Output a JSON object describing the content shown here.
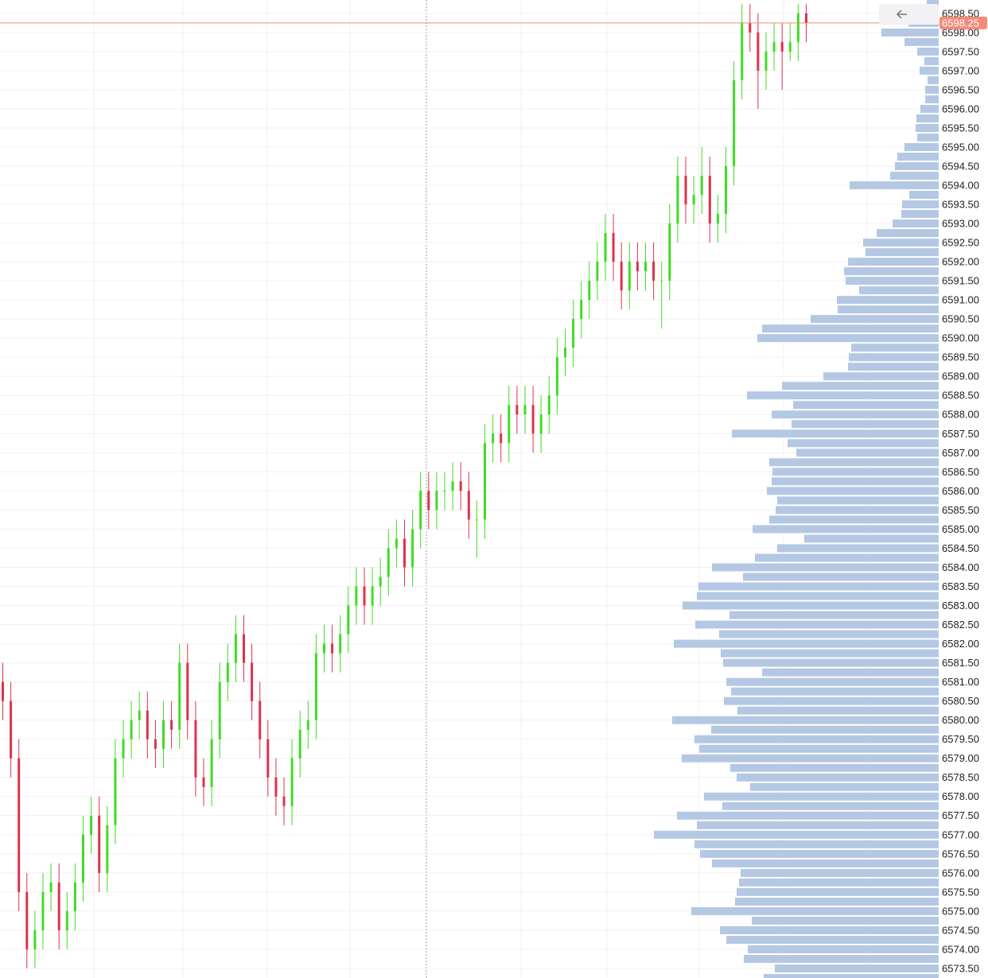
{
  "chart_data": {
    "type": "candlestick",
    "ylim": [
      6573.25,
      6598.85
    ],
    "yticks": [
      {
        "value": 6573.5,
        "label": "6573.50"
      },
      {
        "value": 6574.0,
        "label": "6574.00"
      },
      {
        "value": 6574.5,
        "label": "6574.50"
      },
      {
        "value": 6575.0,
        "label": "6575.00"
      },
      {
        "value": 6575.5,
        "label": "6575.50"
      },
      {
        "value": 6576.0,
        "label": "6576.00"
      },
      {
        "value": 6576.5,
        "label": "6576.50"
      },
      {
        "value": 6577.0,
        "label": "6577.00"
      },
      {
        "value": 6577.5,
        "label": "6577.50"
      },
      {
        "value": 6578.0,
        "label": "6578.00"
      },
      {
        "value": 6578.5,
        "label": "6578.50"
      },
      {
        "value": 6579.0,
        "label": "6579.00"
      },
      {
        "value": 6579.5,
        "label": "6579.50"
      },
      {
        "value": 6580.0,
        "label": "6580.00"
      },
      {
        "value": 6580.5,
        "label": "6580.50"
      },
      {
        "value": 6581.0,
        "label": "6581.00"
      },
      {
        "value": 6581.5,
        "label": "6581.50"
      },
      {
        "value": 6582.0,
        "label": "6582.00"
      },
      {
        "value": 6582.5,
        "label": "6582.50"
      },
      {
        "value": 6583.0,
        "label": "6583.00"
      },
      {
        "value": 6583.5,
        "label": "6583.50"
      },
      {
        "value": 6584.0,
        "label": "6584.00"
      },
      {
        "value": 6584.5,
        "label": "6584.50"
      },
      {
        "value": 6585.0,
        "label": "6585.00"
      },
      {
        "value": 6585.5,
        "label": "6585.50"
      },
      {
        "value": 6586.0,
        "label": "6586.00"
      },
      {
        "value": 6586.5,
        "label": "6586.50"
      },
      {
        "value": 6587.0,
        "label": "6587.00"
      },
      {
        "value": 6587.5,
        "label": "6587.50"
      },
      {
        "value": 6588.0,
        "label": "6588.00"
      },
      {
        "value": 6588.5,
        "label": "6588.50"
      },
      {
        "value": 6589.0,
        "label": "6589.00"
      },
      {
        "value": 6589.5,
        "label": "6589.50"
      },
      {
        "value": 6590.0,
        "label": "6590.00"
      },
      {
        "value": 6590.5,
        "label": "6590.50"
      },
      {
        "value": 6591.0,
        "label": "6591.00"
      },
      {
        "value": 6591.5,
        "label": "6591.50"
      },
      {
        "value": 6592.0,
        "label": "6592.00"
      },
      {
        "value": 6592.5,
        "label": "6592.50"
      },
      {
        "value": 6593.0,
        "label": "6593.00"
      },
      {
        "value": 6593.5,
        "label": "6593.50"
      },
      {
        "value": 6594.0,
        "label": "6594.00"
      },
      {
        "value": 6594.5,
        "label": "6594.50"
      },
      {
        "value": 6595.0,
        "label": "6595.00"
      },
      {
        "value": 6595.5,
        "label": "6595.50"
      },
      {
        "value": 6596.0,
        "label": "6596.00"
      },
      {
        "value": 6596.5,
        "label": "6596.50"
      },
      {
        "value": 6597.0,
        "label": "6597.00"
      },
      {
        "value": 6597.5,
        "label": "6597.50"
      },
      {
        "value": 6598.0,
        "label": "6598.00"
      },
      {
        "value": 6598.5,
        "label": "6598.50"
      }
    ],
    "grid": true,
    "up_color": "#3fdc22",
    "down_color": "#e0304c",
    "open": [
      6581.0,
      6580.5,
      6579.0,
      6575.5,
      6574.0,
      6574.5,
      6575.5,
      6575.75,
      6574.5,
      6575.0,
      6575.75,
      6577.0,
      6577.5,
      6576.0,
      6577.25,
      6579.0,
      6579.5,
      6580.0,
      6580.25,
      6579.5,
      6579.25,
      6580.0,
      6579.75,
      6581.5,
      6580.0,
      6578.5,
      6578.25,
      6579.5,
      6581.0,
      6581.5,
      6582.25,
      6581.5,
      6580.5,
      6579.5,
      6578.5,
      6578.0,
      6577.75,
      6579.0,
      6579.75,
      6580.0,
      6581.75,
      6582.0,
      6581.75,
      6582.25,
      6583.0,
      6583.5,
      6583.0,
      6583.5,
      6583.75,
      6584.5,
      6584.75,
      6584.0,
      6585.0,
      6586.0,
      6585.5,
      6586.0,
      6586.0,
      6586.25,
      6586.0,
      6585.25,
      6585.25,
      6587.25,
      6587.5,
      6587.25,
      6588.25,
      6588.0,
      6588.25,
      6587.5,
      6588.0,
      6588.5,
      6589.5,
      6589.75,
      6590.5,
      6591.0,
      6591.5,
      6592.0,
      6592.75,
      6592.0,
      6591.25,
      6592.0,
      6591.75,
      6592.0,
      6591.5,
      6591.5,
      6593.0,
      6594.25,
      6593.5,
      6593.75,
      6594.25,
      6593.0,
      6593.25,
      6594.5,
      6596.75,
      6598.25,
      6598.0,
      6597.0,
      6597.5,
      6597.75,
      6597.5,
      6597.75,
      6598.5
    ],
    "high": [
      6581.5,
      6581.0,
      6579.5,
      6576.0,
      6575.0,
      6576.0,
      6576.25,
      6576.25,
      6575.5,
      6576.25,
      6577.5,
      6578.0,
      6578.0,
      6577.75,
      6579.5,
      6580.0,
      6580.5,
      6580.75,
      6580.75,
      6580.0,
      6580.5,
      6580.5,
      6582.0,
      6582.0,
      6580.5,
      6579.0,
      6580.0,
      6581.5,
      6582.0,
      6582.75,
      6582.75,
      6582.0,
      6581.0,
      6580.0,
      6579.0,
      6578.5,
      6579.5,
      6580.25,
      6580.5,
      6582.25,
      6582.5,
      6582.5,
      6582.75,
      6583.5,
      6584.0,
      6584.0,
      6584.0,
      6584.25,
      6585.0,
      6585.25,
      6585.25,
      6585.5,
      6586.5,
      6586.5,
      6586.5,
      6586.5,
      6586.75,
      6586.75,
      6586.5,
      6585.75,
      6587.75,
      6588.0,
      6588.0,
      6588.75,
      6588.75,
      6588.75,
      6588.75,
      6588.5,
      6589.0,
      6590.0,
      6590.25,
      6591.0,
      6591.5,
      6592.0,
      6592.5,
      6593.25,
      6593.25,
      6592.5,
      6592.5,
      6592.5,
      6592.5,
      6592.5,
      6592.0,
      6593.5,
      6594.75,
      6594.75,
      6594.25,
      6595.0,
      6594.75,
      6593.75,
      6595.0,
      6597.25,
      6598.75,
      6598.75,
      6598.5,
      6598.0,
      6598.25,
      6598.25,
      6598.25,
      6598.75,
      6598.75
    ],
    "low": [
      6580.0,
      6578.5,
      6575.0,
      6573.5,
      6573.5,
      6574.0,
      6575.0,
      6574.0,
      6574.0,
      6574.5,
      6575.25,
      6576.5,
      6575.5,
      6575.5,
      6576.75,
      6578.5,
      6579.0,
      6579.5,
      6579.0,
      6578.75,
      6578.75,
      6579.25,
      6579.25,
      6579.5,
      6578.0,
      6577.75,
      6577.75,
      6579.0,
      6580.5,
      6581.0,
      6581.0,
      6580.0,
      6579.0,
      6578.0,
      6577.5,
      6577.25,
      6577.25,
      6578.5,
      6579.25,
      6579.5,
      6581.25,
      6581.25,
      6581.25,
      6581.75,
      6582.5,
      6582.5,
      6582.5,
      6583.0,
      6583.25,
      6584.0,
      6583.5,
      6583.5,
      6584.5,
      6585.0,
      6585.0,
      6585.5,
      6585.5,
      6585.5,
      6584.75,
      6584.25,
      6584.75,
      6586.75,
      6586.75,
      6586.75,
      6587.5,
      6587.5,
      6587.0,
      6587.0,
      6587.5,
      6588.0,
      6589.0,
      6589.25,
      6590.0,
      6590.5,
      6591.0,
      6591.5,
      6591.5,
      6590.75,
      6590.75,
      6591.25,
      6591.25,
      6591.0,
      6590.25,
      6591.0,
      6592.5,
      6593.0,
      6593.0,
      6593.25,
      6592.5,
      6592.5,
      6592.75,
      6594.0,
      6596.25,
      6597.5,
      6596.0,
      6596.5,
      6597.0,
      6596.5,
      6597.25,
      6597.25,
      6597.75
    ],
    "close": [
      6580.5,
      6579.0,
      6575.5,
      6574.0,
      6574.5,
      6575.5,
      6575.75,
      6574.5,
      6575.0,
      6575.75,
      6577.0,
      6577.5,
      6576.0,
      6577.25,
      6579.0,
      6579.5,
      6580.0,
      6580.25,
      6579.5,
      6579.25,
      6580.0,
      6579.75,
      6581.5,
      6580.0,
      6578.5,
      6578.25,
      6579.5,
      6581.0,
      6581.5,
      6582.25,
      6581.5,
      6580.5,
      6579.5,
      6578.5,
      6578.0,
      6577.75,
      6579.0,
      6579.75,
      6580.0,
      6581.75,
      6582.0,
      6581.75,
      6582.25,
      6583.0,
      6583.5,
      6583.0,
      6583.5,
      6583.75,
      6584.5,
      6584.75,
      6584.0,
      6585.0,
      6586.0,
      6585.5,
      6586.0,
      6586.0,
      6586.25,
      6586.0,
      6585.25,
      6585.25,
      6587.25,
      6587.5,
      6587.25,
      6588.25,
      6588.0,
      6588.25,
      6587.5,
      6588.0,
      6588.5,
      6589.5,
      6589.75,
      6590.5,
      6591.0,
      6591.5,
      6592.0,
      6592.75,
      6592.0,
      6591.25,
      6592.0,
      6591.75,
      6592.0,
      6591.5,
      6591.5,
      6593.0,
      6594.25,
      6593.5,
      6593.75,
      6594.25,
      6593.0,
      6593.25,
      6594.5,
      6596.75,
      6598.25,
      6598.0,
      6597.0,
      6597.5,
      6597.75,
      6597.5,
      6597.75,
      6598.5,
      6598.25
    ],
    "profile": {
      "color": "#b4c8e4",
      "prices": [
        6598.75,
        6598.5,
        6598.25,
        6598.0,
        6597.75,
        6597.5,
        6597.25,
        6597.0,
        6596.75,
        6596.5,
        6596.25,
        6596.0,
        6595.75,
        6595.5,
        6595.25,
        6595.0,
        6594.75,
        6594.5,
        6594.25,
        6594.0,
        6593.75,
        6593.5,
        6593.25,
        6593.0,
        6592.75,
        6592.5,
        6592.25,
        6592.0,
        6591.75,
        6591.5,
        6591.25,
        6591.0,
        6590.75,
        6590.5,
        6590.25,
        6590.0,
        6589.75,
        6589.5,
        6589.25,
        6589.0,
        6588.75,
        6588.5,
        6588.25,
        6588.0,
        6587.75,
        6587.5,
        6587.25,
        6587.0,
        6586.75,
        6586.5,
        6586.25,
        6586.0,
        6585.75,
        6585.5,
        6585.25,
        6585.0,
        6584.75,
        6584.5,
        6584.25,
        6584.0,
        6583.75,
        6583.5,
        6583.25,
        6583.0,
        6582.75,
        6582.5,
        6582.25,
        6582.0,
        6581.75,
        6581.5,
        6581.25,
        6581.0,
        6580.75,
        6580.5,
        6580.25,
        6580.0,
        6579.75,
        6579.5,
        6579.25,
        6579.0,
        6578.75,
        6578.5,
        6578.25,
        6578.0,
        6577.75,
        6577.5,
        6577.25,
        6577.0,
        6576.75,
        6576.5,
        6576.25,
        6576.0,
        6575.75,
        6575.5,
        6575.25,
        6575.0,
        6574.75,
        6574.5,
        6574.25,
        6574.0,
        6573.75,
        6573.5,
        6573.25
      ],
      "volumes": [
        15,
        40,
        38,
        72,
        43,
        27,
        18,
        24,
        14,
        17,
        17,
        23,
        28,
        29,
        27,
        43,
        52,
        55,
        61,
        112,
        37,
        46,
        47,
        58,
        78,
        95,
        92,
        114,
        119,
        117,
        100,
        128,
        127,
        161,
        222,
        228,
        110,
        113,
        114,
        145,
        197,
        241,
        183,
        210,
        185,
        260,
        190,
        179,
        213,
        209,
        210,
        216,
        203,
        205,
        213,
        234,
        169,
        203,
        231,
        285,
        246,
        302,
        304,
        322,
        263,
        306,
        276,
        333,
        274,
        271,
        222,
        267,
        261,
        270,
        253,
        335,
        286,
        307,
        301,
        323,
        262,
        254,
        237,
        295,
        272,
        329,
        304,
        358,
        307,
        300,
        285,
        249,
        251,
        254,
        256,
        311,
        235,
        275,
        267,
        240,
        245,
        206,
        220
      ]
    },
    "current_price": {
      "value": 6598.25,
      "label": "6598.25",
      "color": "#f28b78"
    }
  }
}
